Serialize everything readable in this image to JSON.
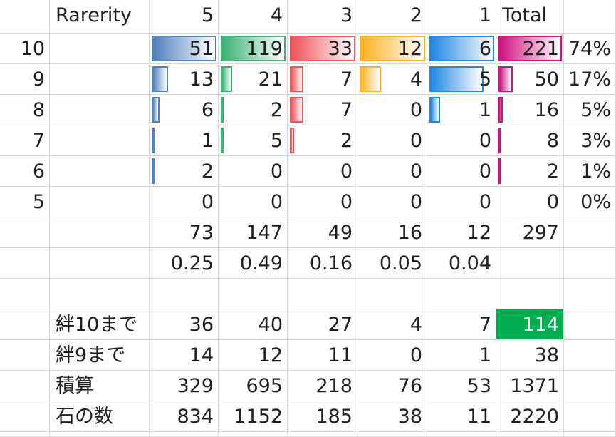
{
  "header": {
    "label": "Rarerity",
    "cols": [
      "5",
      "4",
      "3",
      "2",
      "1"
    ],
    "total": "Total"
  },
  "bar_colors": [
    "#4f81bd",
    "#3bb273",
    "#f05258",
    "#fdb022",
    "#1e88e5",
    "#d0147f"
  ],
  "rows": [
    {
      "key": "10",
      "values": [
        "51",
        "119",
        "33",
        "12",
        "6"
      ],
      "total": "221",
      "pct": "74%"
    },
    {
      "key": "9",
      "values": [
        "13",
        "21",
        "7",
        "4",
        "5"
      ],
      "total": "50",
      "pct": "17%"
    },
    {
      "key": "8",
      "values": [
        "6",
        "2",
        "7",
        "0",
        "1"
      ],
      "total": "16",
      "pct": "5%"
    },
    {
      "key": "7",
      "values": [
        "1",
        "5",
        "2",
        "0",
        "0"
      ],
      "total": "8",
      "pct": "3%"
    },
    {
      "key": "6",
      "values": [
        "2",
        "0",
        "0",
        "0",
        "0"
      ],
      "total": "2",
      "pct": "1%"
    },
    {
      "key": "5",
      "values": [
        "0",
        "0",
        "0",
        "0",
        "0"
      ],
      "total": "0",
      "pct": "0%"
    }
  ],
  "bar_fractions": [
    [
      1.0,
      1.0,
      1.0,
      1.0,
      1.0,
      1.0
    ],
    [
      0.25,
      0.18,
      0.21,
      0.33,
      0.83,
      0.23
    ],
    [
      0.12,
      0.02,
      0.21,
      0.0,
      0.17,
      0.07
    ],
    [
      0.02,
      0.04,
      0.06,
      0.0,
      0.0,
      0.04
    ],
    [
      0.04,
      0.0,
      0.0,
      0.0,
      0.0,
      0.01
    ],
    [
      0.0,
      0.0,
      0.0,
      0.0,
      0.0,
      0.0
    ]
  ],
  "sums": {
    "values": [
      "73",
      "147",
      "49",
      "16",
      "12"
    ],
    "total": "297"
  },
  "ratios": {
    "values": [
      "0.25",
      "0.49",
      "0.16",
      "0.05",
      "0.04"
    ]
  },
  "summary": [
    {
      "label": "絆10まで",
      "values": [
        "36",
        "40",
        "27",
        "4",
        "7"
      ],
      "total": "114",
      "highlight": true
    },
    {
      "label": "絆9まで",
      "values": [
        "14",
        "12",
        "11",
        "0",
        "1"
      ],
      "total": "38"
    },
    {
      "label": "積算",
      "values": [
        "329",
        "695",
        "218",
        "76",
        "53"
      ],
      "total": "1371"
    },
    {
      "label": "石の数",
      "values": [
        "834",
        "1152",
        "185",
        "38",
        "11"
      ],
      "total": "2220"
    }
  ]
}
